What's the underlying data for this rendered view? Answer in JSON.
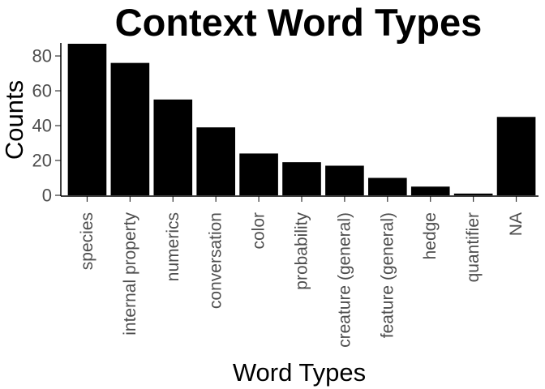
{
  "chart_data": {
    "type": "bar",
    "title": "Context Word Types",
    "xlabel": "Word Types",
    "ylabel": "Counts",
    "categories": [
      "species",
      "internal property",
      "numerics",
      "conversation",
      "color",
      "probability",
      "creature (general)",
      "feature (general)",
      "hedge",
      "quantifier",
      "NA"
    ],
    "values": [
      87,
      76,
      55,
      39,
      24,
      19,
      17,
      10,
      5,
      1,
      45
    ],
    "ylim": [
      0,
      87
    ],
    "yticks": [
      0,
      20,
      40,
      60,
      80
    ],
    "grid": false,
    "legend": "none",
    "bar_color": "#000000"
  }
}
